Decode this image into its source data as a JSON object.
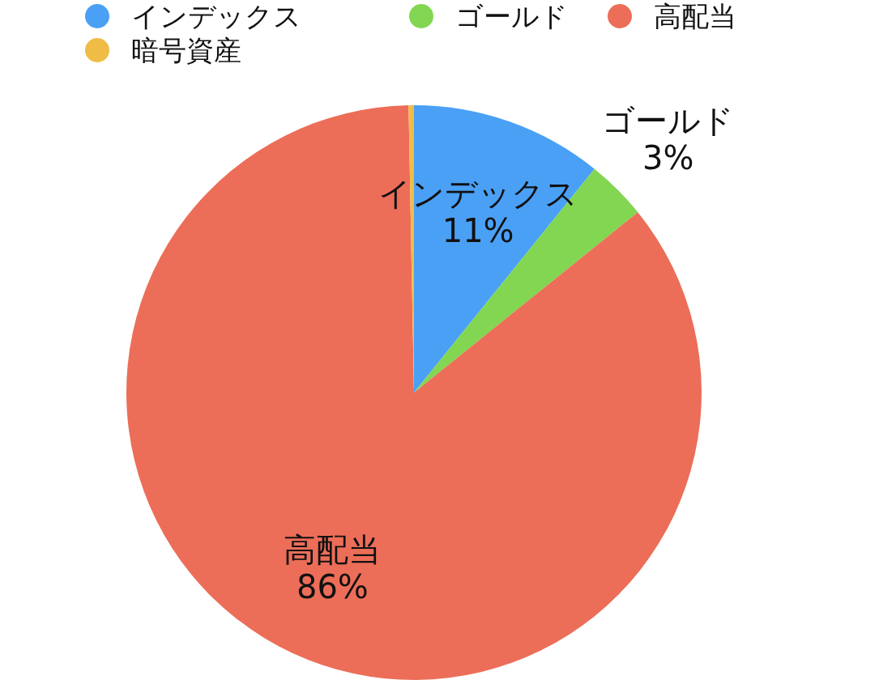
{
  "chart_data": {
    "type": "pie",
    "categories": [
      "インデックス",
      "ゴールド",
      "高配当",
      "暗号資産"
    ],
    "values": [
      10.8,
      3.4,
      85.5,
      0.3
    ],
    "value_labels": [
      "11%",
      "3%",
      "86%",
      null
    ],
    "colors": [
      "#4aa0f5",
      "#82d651",
      "#ec6e58",
      "#efbd45"
    ],
    "legend": "top"
  }
}
